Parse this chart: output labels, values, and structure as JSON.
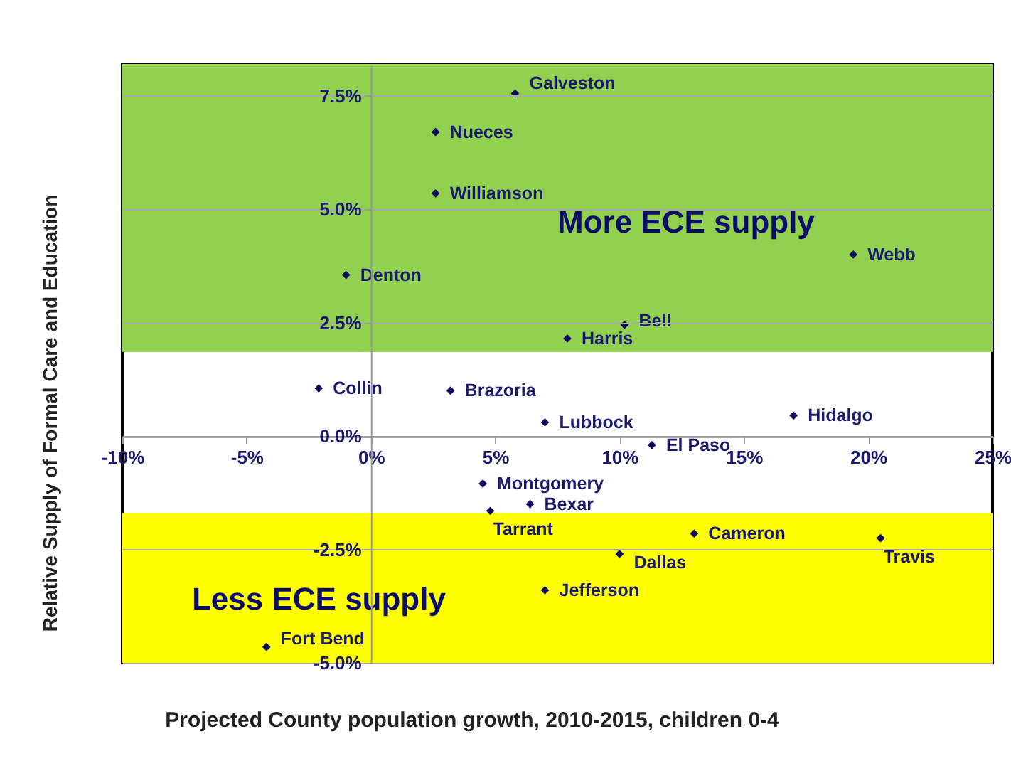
{
  "chart_data": {
    "type": "scatter",
    "xlabel": "Projected County population growth, 2010-2015, children 0-4",
    "ylabel": "Relative Supply of Formal Care and Education",
    "x": [
      5.8,
      2.6,
      2.6,
      -1.0,
      19.4,
      10.2,
      7.9,
      -2.1,
      3.2,
      7.0,
      17.0,
      11.3,
      4.5,
      6.4,
      4.8,
      13.0,
      20.5,
      10.0,
      7.0,
      -4.2
    ],
    "values": [
      7.55,
      6.7,
      5.35,
      3.55,
      4.0,
      2.45,
      2.15,
      1.05,
      1.0,
      0.3,
      0.45,
      -0.2,
      -1.05,
      -1.5,
      -1.65,
      -2.15,
      -2.25,
      -2.6,
      -3.4,
      -4.65
    ],
    "color": "#0c0c5a",
    "marker": "diamond",
    "xlim": [
      -10,
      25
    ],
    "ylim": [
      -5,
      8.2
    ],
    "xticks": [
      {
        "value": -10,
        "label": "-10%"
      },
      {
        "value": -5,
        "label": "-5%"
      },
      {
        "value": 0,
        "label": "0%"
      },
      {
        "value": 5,
        "label": "5%"
      },
      {
        "value": 10,
        "label": "10%"
      },
      {
        "value": 15,
        "label": "15%"
      },
      {
        "value": 20,
        "label": "20%"
      },
      {
        "value": 25,
        "label": "25%"
      }
    ],
    "yticks": [
      {
        "value": -5,
        "label": "-5.0%"
      },
      {
        "value": -2.5,
        "label": "-2.5%"
      },
      {
        "value": 0,
        "label": "0.0%"
      },
      {
        "value": 2.5,
        "label": "2.5%"
      },
      {
        "value": 5,
        "label": "5.0%"
      },
      {
        "value": 7.5,
        "label": "7.5%"
      }
    ],
    "grid": "y",
    "bands": [
      {
        "axis": "y",
        "from": 1.85,
        "to": 8.2,
        "label": "More ECE supply",
        "color": "#92d050"
      },
      {
        "axis": "y",
        "from": -5,
        "to": -1.7,
        "label": "Less ECE supply",
        "color": "#ffff00"
      }
    ],
    "annotations": [
      {
        "text": "Galveston",
        "x": 5.8,
        "y": 7.55
      },
      {
        "text": "Nueces",
        "x": 2.6,
        "y": 6.7
      },
      {
        "text": "Williamson",
        "x": 2.6,
        "y": 5.35
      },
      {
        "text": "Denton",
        "x": -1.0,
        "y": 3.55
      },
      {
        "text": "Webb",
        "x": 19.4,
        "y": 4.0
      },
      {
        "text": "Bell",
        "x": 10.2,
        "y": 2.45
      },
      {
        "text": "Harris",
        "x": 7.9,
        "y": 2.15
      },
      {
        "text": "Collin",
        "x": -2.1,
        "y": 1.05
      },
      {
        "text": "Brazoria",
        "x": 3.2,
        "y": 1.0
      },
      {
        "text": "Lubbock",
        "x": 7.0,
        "y": 0.3
      },
      {
        "text": "Hidalgo",
        "x": 17.0,
        "y": 0.45
      },
      {
        "text": "El Paso",
        "x": 11.3,
        "y": -0.2
      },
      {
        "text": "Montgomery",
        "x": 4.5,
        "y": -1.05
      },
      {
        "text": "Bexar",
        "x": 6.4,
        "y": -1.5
      },
      {
        "text": "Tarrant",
        "x": 4.8,
        "y": -1.65
      },
      {
        "text": "Cameron",
        "x": 13.0,
        "y": -2.15
      },
      {
        "text": "Travis",
        "x": 20.5,
        "y": -2.25
      },
      {
        "text": "Dallas",
        "x": 10.0,
        "y": -2.6
      },
      {
        "text": "Jefferson",
        "x": 7.0,
        "y": -3.4
      },
      {
        "text": "Fort Bend",
        "x": -4.2,
        "y": -4.65
      }
    ]
  }
}
